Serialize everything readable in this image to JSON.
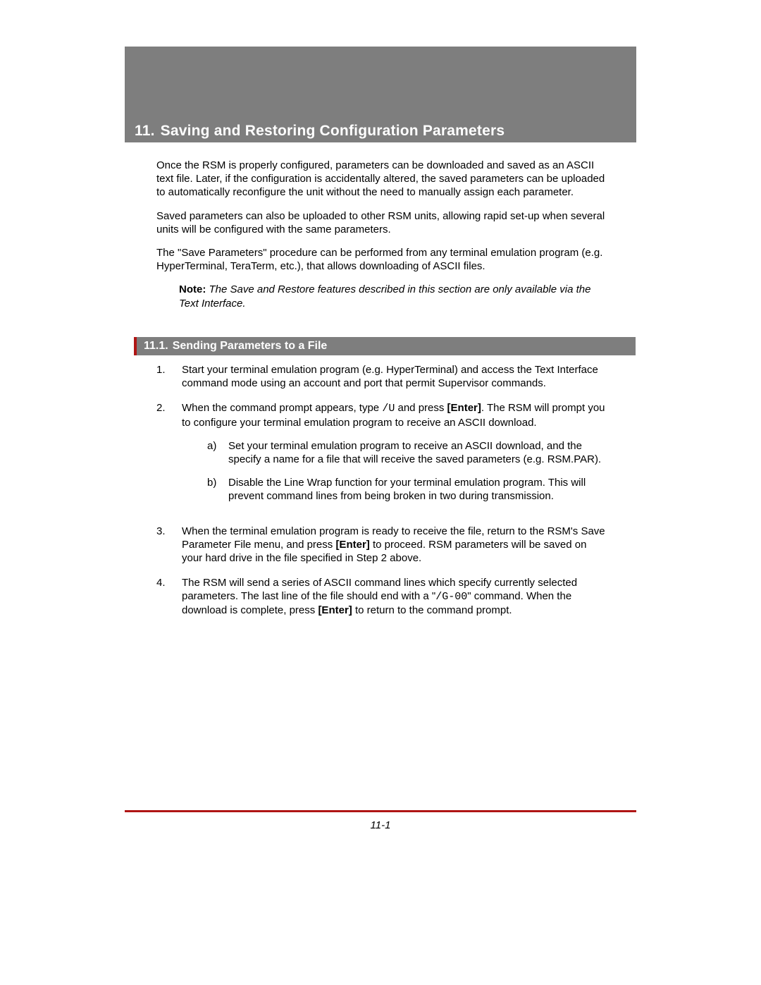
{
  "colors": {
    "bar_bg": "#7e7e7e",
    "bar_text": "#ffffff",
    "accent_red": "#b01514",
    "body_text": "#000000",
    "page_bg": "#ffffff"
  },
  "typography": {
    "body_font": "Arial",
    "body_size_pt": 11,
    "heading_font": "Arial Black",
    "chapter_size_pt": 16,
    "section_size_pt": 12,
    "mono_font": "Courier New"
  },
  "chapter": {
    "number": "11.",
    "title": "Saving and Restoring Configuration Parameters"
  },
  "intro_paragraphs": [
    "Once the RSM is properly configured, parameters can be downloaded and saved as an ASCII text file.  Later, if the configuration is accidentally altered, the saved parameters can be uploaded to automatically reconfigure the unit without the need to manually assign each parameter.",
    "Saved parameters can also be uploaded to other RSM units, allowing rapid set-up when several units will be configured with the same parameters.",
    "The \"Save Parameters\" procedure can be performed from any terminal emulation program (e.g. HyperTerminal, TeraTerm, etc.), that allows downloading of ASCII files."
  ],
  "note": {
    "label": "Note:",
    "text": "  The Save and Restore features described in this section are only available via the Text Interface."
  },
  "section": {
    "number": "11.1.",
    "title": "Sending Parameters to a File"
  },
  "steps": {
    "s1": {
      "num": "1.",
      "text": "Start your terminal emulation program (e.g. HyperTerminal) and access the Text Interface command mode using an account and port that permit Supervisor commands."
    },
    "s2": {
      "num": "2.",
      "pre": "When the command prompt appears, type ",
      "cmd": "/U",
      "mid": " and press ",
      "key": "[Enter]",
      "post": ".  The RSM will prompt you to configure your terminal emulation program to receive an ASCII download."
    },
    "s2a": {
      "num": "a)",
      "text": "Set your terminal emulation program to receive an ASCII download, and the specify a name for a file that will receive the saved parameters (e.g. RSM.PAR)."
    },
    "s2b": {
      "num": "b)",
      "text": "Disable the Line Wrap function for your terminal emulation program.  This will prevent command lines from being broken in two during transmission."
    },
    "s3": {
      "num": "3.",
      "pre": "When the terminal emulation program is ready to receive the file, return to the RSM's Save Parameter File menu, and press ",
      "key": "[Enter]",
      "post": " to proceed.  RSM parameters will be saved on your hard drive in the file specified in Step 2 above."
    },
    "s4": {
      "num": "4.",
      "pre": "The RSM will send a series of ASCII command lines which specify currently selected parameters.  The last line of the file should end with a \"",
      "cmd": "/G-00",
      "mid": "\" command.  When the download is complete, press ",
      "key": "[Enter]",
      "post": " to return to the command prompt."
    }
  },
  "page_number": "11-1"
}
